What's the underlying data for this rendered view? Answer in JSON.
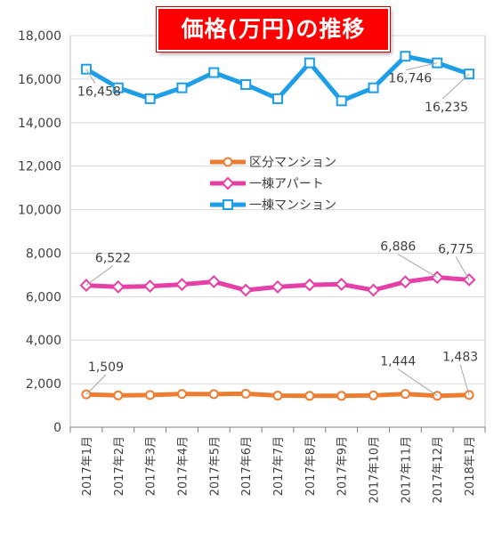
{
  "chart_data": {
    "type": "line",
    "title": "価格(万円)の推移",
    "xlabel": "",
    "ylabel": "",
    "ylim": [
      0,
      18000
    ],
    "yticks": [
      "0",
      "2,000",
      "4,000",
      "6,000",
      "8,000",
      "10,000",
      "12,000",
      "14,000",
      "16,000",
      "18,000"
    ],
    "categories": [
      "2017年1月",
      "2017年2月",
      "2017年3月",
      "2017年4月",
      "2017年5月",
      "2017年6月",
      "2017年7月",
      "2017年8月",
      "2017年9月",
      "2017年10月",
      "2017年11月",
      "2017年12月",
      "2018年1月"
    ],
    "grid": "horizontal",
    "legend_position": "center",
    "series": [
      {
        "name": "区分マンション",
        "color": "#ed7d31",
        "marker": "circle",
        "values": [
          1509,
          1460,
          1480,
          1530,
          1520,
          1540,
          1450,
          1440,
          1440,
          1460,
          1530,
          1444,
          1483
        ]
      },
      {
        "name": "一棟アパート",
        "color": "#e63fa8",
        "marker": "diamond",
        "values": [
          6522,
          6450,
          6480,
          6560,
          6690,
          6300,
          6450,
          6540,
          6570,
          6300,
          6680,
          6886,
          6775
        ]
      },
      {
        "name": "一棟マンション",
        "color": "#1e9ee6",
        "marker": "square",
        "values": [
          16458,
          15600,
          15100,
          15600,
          16300,
          15750,
          15100,
          16746,
          15000,
          15600,
          17050,
          16746,
          16235
        ]
      }
    ],
    "annotations": [
      {
        "series": 0,
        "index": 0,
        "text": "1,509"
      },
      {
        "series": 0,
        "index": 11,
        "text": "1,444"
      },
      {
        "series": 0,
        "index": 12,
        "text": "1,483"
      },
      {
        "series": 1,
        "index": 0,
        "text": "6,522"
      },
      {
        "series": 1,
        "index": 11,
        "text": "6,886"
      },
      {
        "series": 1,
        "index": 12,
        "text": "6,775"
      },
      {
        "series": 2,
        "index": 0,
        "text": "16,458"
      },
      {
        "series": 2,
        "index": 11,
        "text": "16,746"
      },
      {
        "series": 2,
        "index": 12,
        "text": "16,235"
      }
    ]
  }
}
